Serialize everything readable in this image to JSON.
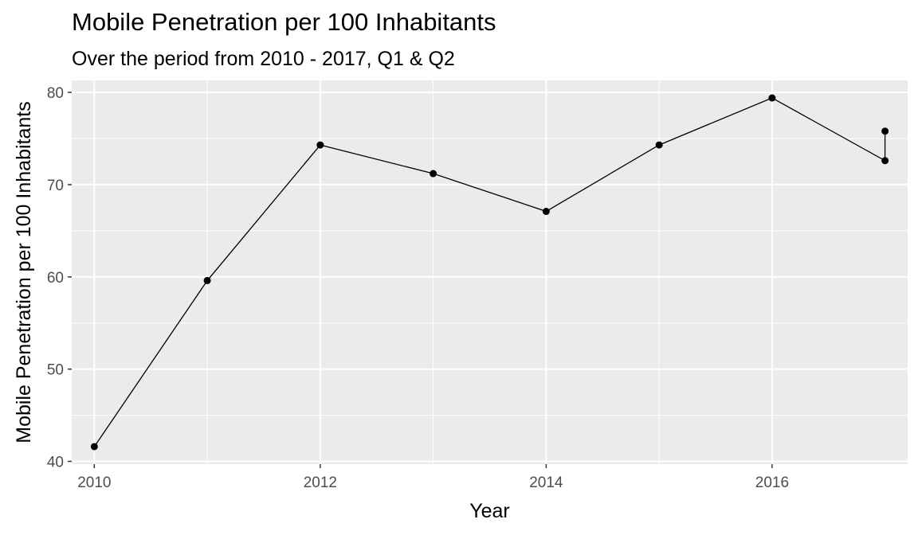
{
  "chart_data": {
    "type": "line",
    "title": "Mobile Penetration per 100 Inhabitants",
    "subtitle": "Over the period from 2010 - 2017, Q1 & Q2",
    "xlabel": "Year",
    "ylabel": "Mobile Penetration per 100 Inhabitants",
    "xlim": [
      2009.8,
      2017.2
    ],
    "ylim": [
      39.7,
      81.3
    ],
    "x_ticks": [
      2010,
      2012,
      2014,
      2016
    ],
    "y_ticks": [
      40,
      50,
      60,
      70,
      80
    ],
    "grid": true,
    "legend": "none",
    "colors": {
      "panel": "#ebebeb",
      "grid": "#ffffff",
      "line": "#000000",
      "point": "#000000"
    },
    "series": [
      {
        "x": [
          2010,
          2011,
          2012,
          2013,
          2014,
          2015,
          2016,
          2017,
          2017
        ],
        "y": [
          41.6,
          59.6,
          74.3,
          71.2,
          67.1,
          74.3,
          79.4,
          72.6,
          75.8
        ]
      }
    ]
  }
}
